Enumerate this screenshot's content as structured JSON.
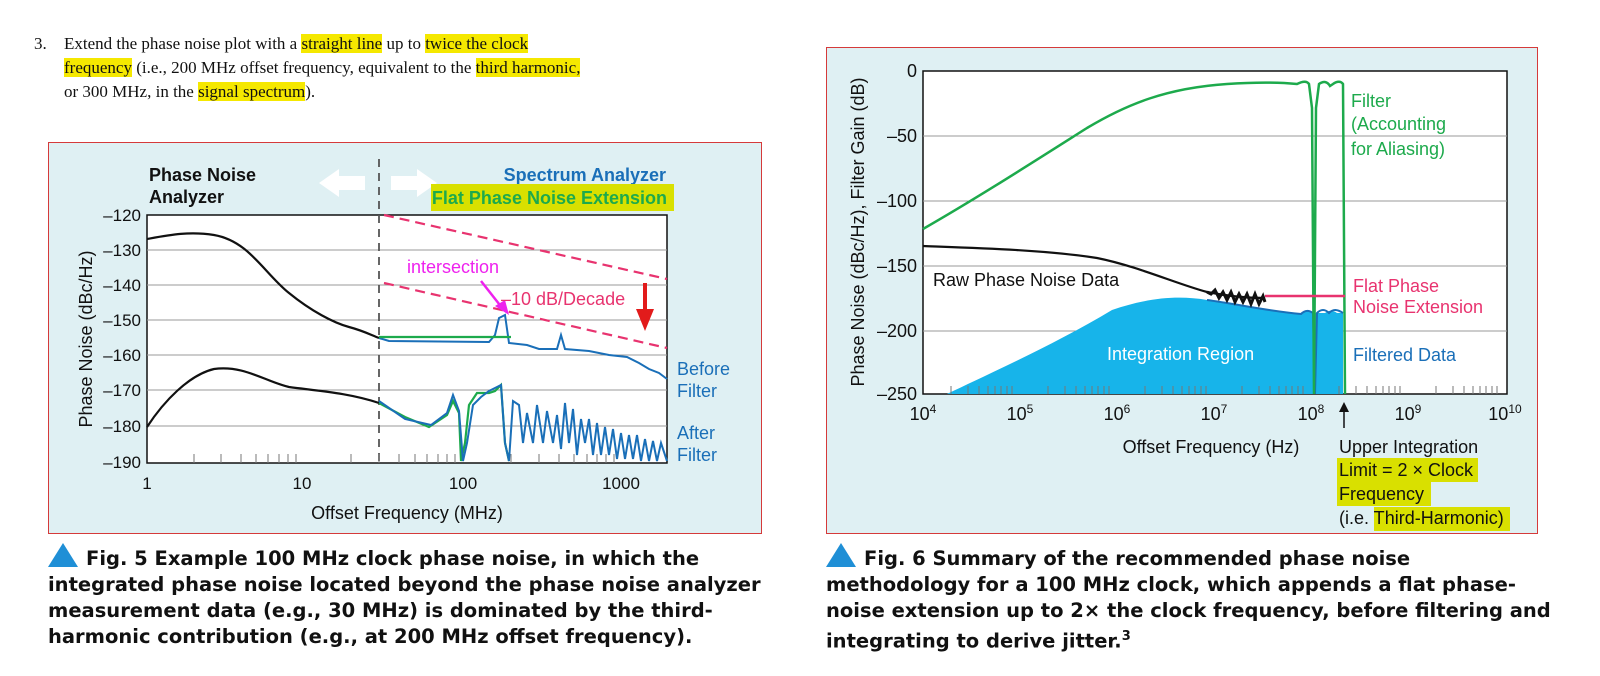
{
  "step": {
    "number": "3.",
    "segments": [
      {
        "t": "Extend the phase noise plot with a ",
        "hl": false
      },
      {
        "t": "straight line",
        "hl": true
      },
      {
        "t": " up to ",
        "hl": false
      },
      {
        "t": "twice the clock frequency",
        "hl": true
      },
      {
        "t": " (i.e., 200 MHz offset frequency, equivalent to the ",
        "hl": false
      },
      {
        "t": "third harmonic,",
        "hl": true
      },
      {
        "t": " or 300 MHz, in the ",
        "hl": false
      },
      {
        "t": "signal spectrum",
        "hl": true
      },
      {
        "t": ").",
        "hl": false
      }
    ]
  },
  "fig5": {
    "label_pna_1": "Phase Noise",
    "label_pna_2": "Analyzer",
    "label_sa": "Spectrum Analyzer",
    "label_flat": "Flat Phase Noise Extension",
    "label_intersection": "intersection",
    "label_slope": "–10 dB/Decade",
    "label_before_1": "Before",
    "label_before_2": "Filter",
    "label_after_1": "After",
    "label_after_2": "Filter",
    "ylabel": "Phase Noise (dBc/Hz)",
    "xlabel": "Offset Frequency (MHz)",
    "yticks": [
      "–120",
      "–130",
      "–140",
      "–150",
      "–160",
      "–170",
      "–180",
      "–190"
    ],
    "xticks": [
      "1",
      "10",
      "100",
      "1000"
    ],
    "colors": {
      "black": "#111111",
      "blue": "#1a6fb8",
      "green": "#1daa4c",
      "pink": "#e8336f",
      "magenta": "#ee22ee",
      "red": "#e21b1b",
      "highlight": "#f5e800"
    }
  },
  "fig6": {
    "ylabel": "Phase Noise (dBc/Hz), Filter Gain (dB)",
    "xlabel": "Offset Frequency (Hz)",
    "yticks": [
      "0",
      "–50",
      "–100",
      "–150",
      "–200",
      "–250"
    ],
    "xticks": [
      {
        "base": "10",
        "exp": "4"
      },
      {
        "base": "10",
        "exp": "5"
      },
      {
        "base": "10",
        "exp": "6"
      },
      {
        "base": "10",
        "exp": "7"
      },
      {
        "base": "10",
        "exp": "8"
      },
      {
        "base": "10",
        "exp": "9"
      },
      {
        "base": "10",
        "exp": "10"
      }
    ],
    "label_filter_1": "Filter",
    "label_filter_2": "(Accounting",
    "label_filter_3": "for Aliasing)",
    "label_raw": "Raw Phase Noise Data",
    "label_flat_1": "Flat Phase",
    "label_flat_2": "Noise Extension",
    "label_integration": "Integration Region",
    "label_filtered": "Filtered Data",
    "label_upper_1": "Upper Integration",
    "label_upper_2": "Limit = 2 × Clock",
    "label_upper_3": "Frequency",
    "label_upper_4a": "(i.e. T",
    "label_upper_4b": "hird-Harmonic)",
    "colors": {
      "fill": "#17b4ea",
      "green": "#1daa4c",
      "pink": "#e8336f",
      "blue": "#1a6fb8",
      "highlight": "#d9e000"
    }
  },
  "caption5": {
    "text": "Fig. 5  Example 100 MHz clock phase noise, in which the integrated phase noise located beyond the phase noise analyzer measurement data (e.g., 30 MHz) is dominated by the third-harmonic contribution (e.g., at 200 MHz offset frequency)."
  },
  "caption6": {
    "text": "Fig. 6  Summary of the recommended phase noise methodology for a 100 MHz clock, which appends a flat phase-noise extension up to 2× the clock frequency, before filtering and integrating to derive jitter.",
    "ref": "3"
  }
}
